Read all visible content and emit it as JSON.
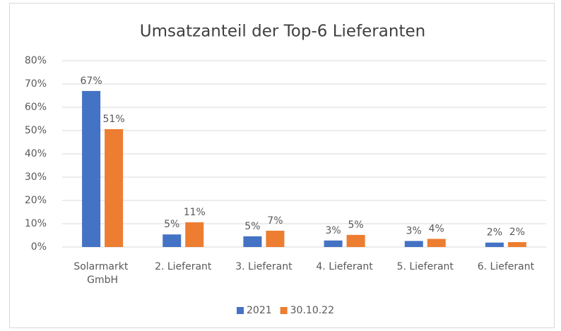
{
  "chart_data": {
    "type": "bar",
    "title": "Umsatzanteil der Top-6 Lieferanten",
    "categories": [
      "Solarmarkt GmbH",
      "2. Lieferant",
      "3. Lieferant",
      "4. Lieferant",
      "5. Lieferant",
      "6. Lieferant"
    ],
    "series": [
      {
        "name": "2021",
        "color": "#4472c4",
        "values": [
          67,
          5.4,
          4.6,
          2.8,
          2.6,
          1.9
        ],
        "value_labels": [
          "67%",
          "5%",
          "5%",
          "3%",
          "3%",
          "2%"
        ]
      },
      {
        "name": "30.10.22",
        "color": "#ed7d31",
        "values": [
          50.6,
          10.6,
          7.0,
          5.2,
          3.5,
          2.1
        ],
        "value_labels": [
          "51%",
          "11%",
          "7%",
          "5%",
          "4%",
          "2%"
        ]
      }
    ],
    "ylim": [
      0,
      80
    ],
    "yticks": [
      {
        "value": 0,
        "label": "0%"
      },
      {
        "value": 10,
        "label": "10%"
      },
      {
        "value": 20,
        "label": "20%"
      },
      {
        "value": 30,
        "label": "30%"
      },
      {
        "value": 40,
        "label": "40%"
      },
      {
        "value": 50,
        "label": "50%"
      },
      {
        "value": 60,
        "label": "60%"
      },
      {
        "value": 70,
        "label": "70%"
      },
      {
        "value": 80,
        "label": "80%"
      }
    ],
    "grid": true,
    "legend": "bottom"
  }
}
